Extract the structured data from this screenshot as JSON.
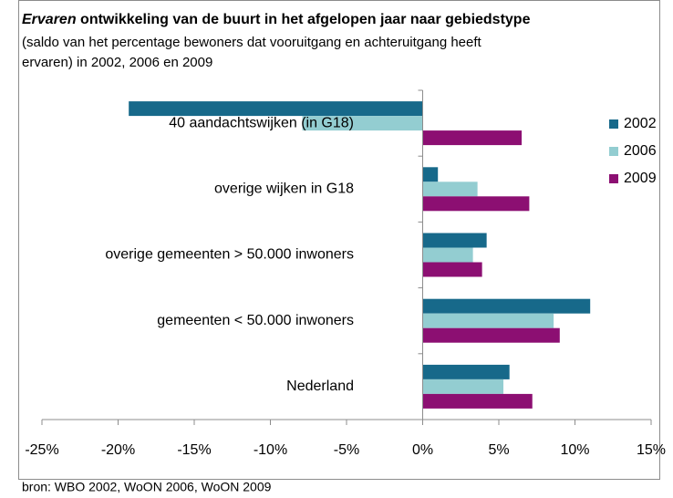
{
  "chart_data": {
    "type": "hbar",
    "title_emphasis": "Ervaren",
    "title": "ontwikkeling van de buurt in het afgelopen jaar naar gebiedstype",
    "subtitle": [
      "(saldo van het percentage bewoners dat vooruitgang en achteruitgang heeft",
      "ervaren) in 2002, 2006 en 2009"
    ],
    "source": "bron: WBO 2002, WoON 2006, WoON 2009",
    "categories": [
      "40 aandachtswijken (in G18)",
      "overige wijken in G18",
      "overige gemeenten > 50.000 inwoners",
      "gemeenten < 50.000 inwoners",
      "Nederland"
    ],
    "series": [
      {
        "name": "2002",
        "color": "#17698a",
        "values": [
          -19.3,
          1.0,
          4.2,
          11.0,
          5.7
        ]
      },
      {
        "name": "2006",
        "color": "#93cdd1",
        "values": [
          -7.9,
          3.6,
          3.3,
          8.6,
          5.3
        ]
      },
      {
        "name": "2009",
        "color": "#8c0f72",
        "values": [
          6.5,
          7.0,
          3.9,
          9.0,
          7.2
        ]
      }
    ],
    "xlim": [
      -25,
      15
    ],
    "xticks": [
      {
        "value": -25,
        "label": "-25%"
      },
      {
        "value": -20,
        "label": "-20%"
      },
      {
        "value": -15,
        "label": "-15%"
      },
      {
        "value": -10,
        "label": "-10%"
      },
      {
        "value": -5,
        "label": "-5%"
      },
      {
        "value": 0,
        "label": "0%"
      },
      {
        "value": 5,
        "label": "5%"
      },
      {
        "value": 10,
        "label": "10%"
      },
      {
        "value": 15,
        "label": "15%"
      }
    ],
    "legend": "right"
  }
}
